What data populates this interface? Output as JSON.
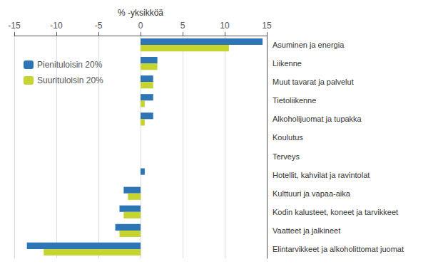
{
  "chart_data": {
    "type": "bar",
    "orientation": "horizontal",
    "xlabel": "% -yksikköä",
    "categories": [
      "Asuminen ja energia",
      "Liikenne",
      "Muut tavarat ja palvelut",
      "Tietoliikenne",
      "Alkoholijuomat ja tupakka",
      "Koulutus",
      "Terveys",
      "Hotellit, kahvilat ja ravintolat",
      "Kulttuuri ja vapaa-aika",
      "Kodin kalusteet, koneet ja tarvikkeet",
      "Vaatteet ja jalkineet",
      "Elintarvikkeet ja alkoholittomat juomat"
    ],
    "series": [
      {
        "name": "Pienituloisin 20%",
        "color": "#2E75B6",
        "values": [
          14.5,
          2.0,
          1.5,
          1.5,
          1.5,
          0.0,
          0.0,
          0.5,
          -2.0,
          -2.5,
          -3.0,
          -13.5
        ]
      },
      {
        "name": "Suurituloisin 20%",
        "color": "#C5D42F",
        "values": [
          10.5,
          2.0,
          1.5,
          0.5,
          0.5,
          0.0,
          0.0,
          0.0,
          -1.5,
          -2.0,
          -2.5,
          -11.5
        ]
      }
    ],
    "xlim": [
      -15,
      15
    ],
    "xticks": [
      -15,
      -10,
      -5,
      0,
      5,
      10,
      15
    ],
    "grid": true,
    "legend": "upper left"
  }
}
